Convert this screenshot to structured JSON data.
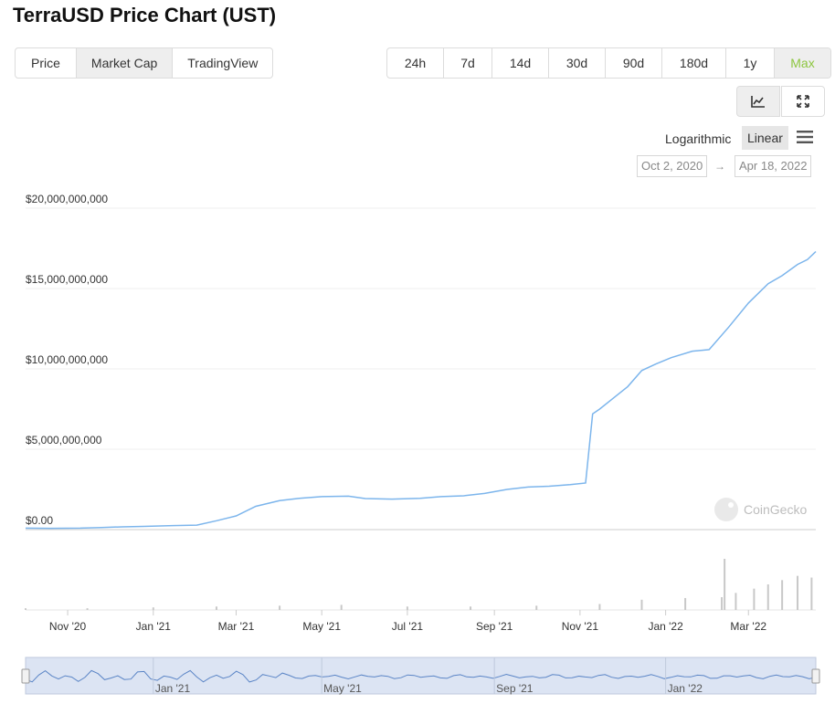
{
  "page": {
    "title": "TerraUSD Price Chart (UST)"
  },
  "view_tabs": [
    "Price",
    "Market Cap",
    "TradingView"
  ],
  "view_active": "Market Cap",
  "range_tabs": [
    "24h",
    "7d",
    "14d",
    "30d",
    "90d",
    "180d",
    "1y",
    "Max"
  ],
  "range_active": "Max",
  "scale": {
    "log_label": "Logarithmic",
    "linear_label": "Linear",
    "active": "Linear"
  },
  "date_range": {
    "from": "Oct 2, 2020",
    "arrow": "→",
    "to": "Apr 18, 2022"
  },
  "watermark": "CoinGecko",
  "colors": {
    "line": "#7cb5ec",
    "active_range_text": "#8dc63f",
    "navigator_fill": "#cdd9ee"
  },
  "chart_data": {
    "type": "line",
    "title": "",
    "xlabel": "",
    "ylabel": "",
    "ylim": [
      0,
      20000000000
    ],
    "y_ticks": [
      0,
      5000000000,
      10000000000,
      15000000000,
      20000000000
    ],
    "y_tick_labels": [
      "$0.00",
      "$5,000,000,000",
      "$10,000,000,000",
      "$15,000,000,000",
      "$20,000,000,000"
    ],
    "x_tick_labels": [
      "Nov '20",
      "Jan '21",
      "Mar '21",
      "May '21",
      "Jul '21",
      "Sep '21",
      "Nov '21",
      "Jan '22",
      "Mar '22"
    ],
    "navigator_labels": [
      "Jan '21",
      "May '21",
      "Sep '21",
      "Jan '22"
    ],
    "grid": true,
    "legend": "none",
    "series": [
      {
        "x": [
          "2020-10-02",
          "2020-10-20",
          "2020-11-10",
          "2020-11-25",
          "2020-12-10",
          "2020-12-25",
          "2021-01-15",
          "2021-02-01",
          "2021-02-15",
          "2021-03-01",
          "2021-03-15",
          "2021-04-01",
          "2021-04-15",
          "2021-05-01",
          "2021-05-20",
          "2021-06-01",
          "2021-06-20",
          "2021-07-10",
          "2021-07-25",
          "2021-08-10",
          "2021-08-25",
          "2021-09-10",
          "2021-09-25",
          "2021-10-10",
          "2021-10-25",
          "2021-11-05",
          "2021-11-10",
          "2021-11-15",
          "2021-11-25",
          "2021-12-05",
          "2021-12-15",
          "2021-12-25",
          "2022-01-05",
          "2022-01-20",
          "2022-02-01",
          "2022-02-15",
          "2022-03-01",
          "2022-03-15",
          "2022-03-25",
          "2022-04-05",
          "2022-04-12",
          "2022-04-18"
        ],
        "values": [
          90000000,
          80000000,
          90000000,
          130000000,
          170000000,
          200000000,
          250000000,
          280000000,
          550000000,
          850000000,
          1450000000,
          1800000000,
          1950000000,
          2050000000,
          2080000000,
          1930000000,
          1900000000,
          1950000000,
          2050000000,
          2100000000,
          2250000000,
          2500000000,
          2650000000,
          2700000000,
          2800000000,
          2900000000,
          7200000000,
          7500000000,
          8200000000,
          8900000000,
          9900000000,
          10300000000,
          10700000000,
          11100000000,
          11200000000,
          12600000000,
          14100000000,
          15300000000,
          15800000000,
          16500000000,
          16800000000,
          17300000000
        ]
      }
    ],
    "volume": {
      "x": [
        "2020-10-02",
        "2020-11-15",
        "2021-01-01",
        "2021-02-15",
        "2021-04-01",
        "2021-05-15",
        "2021-07-01",
        "2021-08-15",
        "2021-10-01",
        "2021-11-15",
        "2021-12-15",
        "2022-01-15",
        "2022-02-10",
        "2022-02-12",
        "2022-02-20",
        "2022-03-05",
        "2022-03-15",
        "2022-03-25",
        "2022-04-05",
        "2022-04-15"
      ],
      "values": [
        2,
        2,
        3,
        4,
        5,
        6,
        4,
        4,
        5,
        7,
        12,
        14,
        15,
        60,
        20,
        25,
        30,
        35,
        40,
        38
      ]
    }
  }
}
